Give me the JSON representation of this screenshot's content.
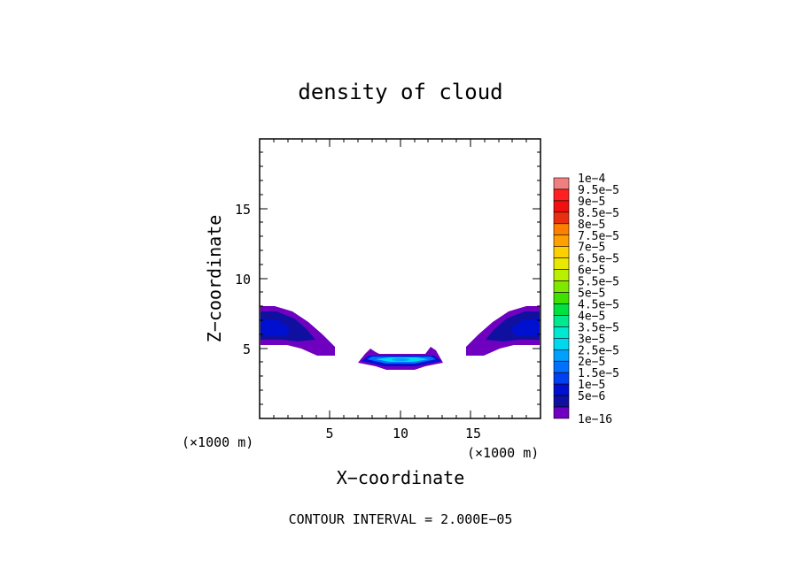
{
  "chart_data": {
    "type": "heatmap",
    "title": "density of cloud",
    "xlabel": "X−coordinate",
    "ylabel": "Z−coordinate",
    "x_unit_label": "(×1000 m)",
    "y_unit_label": "(×1000 m)",
    "xlim": [
      0,
      20
    ],
    "ylim": [
      0,
      20
    ],
    "x_ticks": [
      5,
      10,
      15
    ],
    "y_ticks": [
      5,
      10,
      15
    ],
    "x_tick_labels": [
      "5",
      "10",
      "15"
    ],
    "y_tick_labels": [
      "5",
      "10",
      "15"
    ],
    "footer": "CONTOUR INTERVAL = 2.000E−05",
    "colorbar": {
      "labels": [
        "1e−4",
        "9.5e−5",
        "9e−5",
        "8.5e−5",
        "8e−5",
        "7.5e−5",
        "7e−5",
        "6.5e−5",
        "6e−5",
        "5.5e−5",
        "5e−5",
        "4.5e−5",
        "4e−5",
        "3.5e−5",
        "3e−5",
        "2.5e−5",
        "2e−5",
        "1.5e−5",
        "1e−5",
        "5e−6",
        "1e−16"
      ],
      "colors": [
        "#f08080",
        "#ff2020",
        "#f01010",
        "#e83010",
        "#ff8000",
        "#ffa000",
        "#ffd000",
        "#e8e800",
        "#b8f000",
        "#80e800",
        "#40e000",
        "#00e040",
        "#00e890",
        "#00e8d0",
        "#00d8f0",
        "#00a0ff",
        "#0070ff",
        "#0040f0",
        "#0010d0",
        "#1010a0",
        "#7000c0"
      ]
    },
    "regions": [
      {
        "name": "left-cloud",
        "x": [
          0,
          5.5
        ],
        "z": [
          4.5,
          8
        ]
      },
      {
        "name": "right-cloud",
        "x": [
          14.5,
          20
        ],
        "z": [
          4.5,
          8
        ]
      },
      {
        "name": "center-cloud",
        "x": [
          7,
          13
        ],
        "z": [
          3.5,
          5
        ]
      }
    ]
  }
}
